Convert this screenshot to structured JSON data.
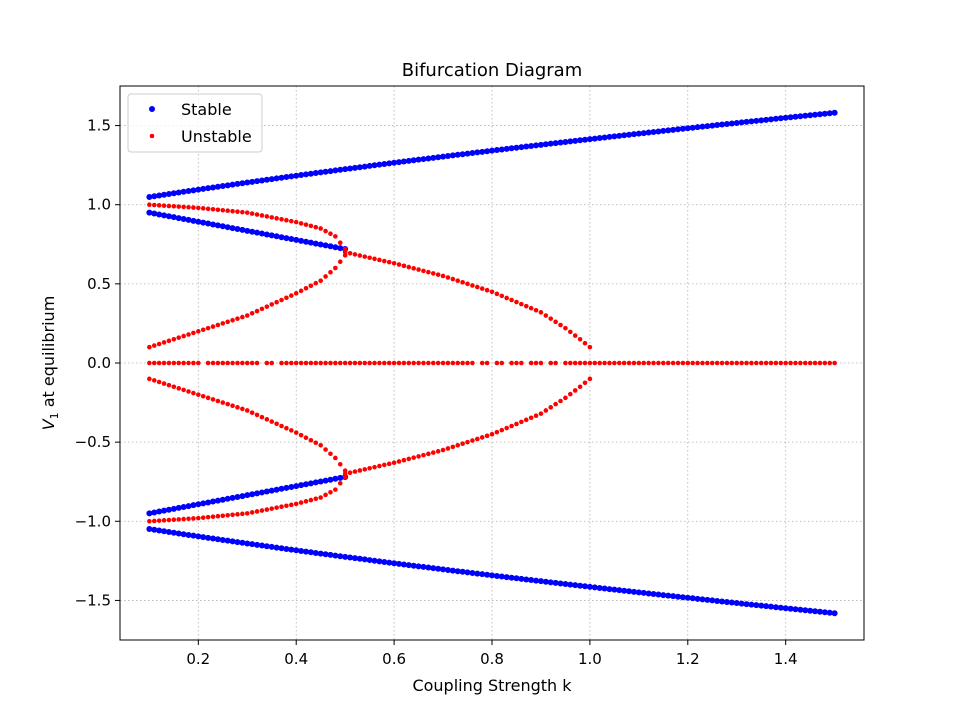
{
  "chart_data": {
    "type": "scatter",
    "title": "Bifurcation Diagram",
    "xlabel": "Coupling Strength k",
    "ylabel_main": "V",
    "ylabel_sub": "1",
    "ylabel_rest": " at equilibrium",
    "xlim": [
      0.04,
      1.56
    ],
    "ylim": [
      -1.75,
      1.75
    ],
    "xticks": [
      0.2,
      0.4,
      0.6,
      0.8,
      1.0,
      1.2,
      1.4
    ],
    "xtick_labels": [
      "0.2",
      "0.4",
      "0.6",
      "0.8",
      "1.0",
      "1.2",
      "1.4"
    ],
    "yticks": [
      -1.5,
      -1.0,
      -0.5,
      0.0,
      0.5,
      1.0,
      1.5
    ],
    "ytick_labels": [
      "−1.5",
      "−1.0",
      "−0.5",
      "0.0",
      "0.5",
      "1.0",
      "1.5"
    ],
    "grid": true,
    "legend": {
      "placement": "upper-left",
      "entries": [
        {
          "name": "Stable",
          "color": "#0000ff"
        },
        {
          "name": "Unstable",
          "color": "#ff0000"
        }
      ]
    },
    "k_min": 0.1,
    "k_max": 1.5,
    "k_step": 0.01,
    "series": [
      {
        "name": "Stable",
        "color": "#0000ff",
        "branches": [
          {
            "k_range": [
              0.1,
              1.5
            ],
            "formula": "sqrt(1+k)"
          },
          {
            "k_range": [
              0.1,
              1.5
            ],
            "formula": "-sqrt(1+k)"
          },
          {
            "k_range": [
              0.1,
              0.5
            ],
            "formula": "sqrt(1-k)"
          },
          {
            "k_range": [
              0.1,
              0.5
            ],
            "formula": "-sqrt(1-k)"
          }
        ]
      },
      {
        "name": "Unstable",
        "color": "#ff0000",
        "branches": [
          {
            "k_range": [
              0.1,
              0.5
            ],
            "formula": "sqrt((1-k)-k*k... approx)",
            "points": [
              [
                0.1,
                1.0
              ],
              [
                0.2,
                0.98
              ],
              [
                0.3,
                0.95
              ],
              [
                0.4,
                0.89
              ],
              [
                0.45,
                0.85
              ],
              [
                0.48,
                0.8
              ],
              [
                0.5,
                0.72
              ]
            ]
          },
          {
            "k_range": [
              0.1,
              0.5
            ],
            "points": [
              [
                0.1,
                0.1
              ],
              [
                0.2,
                0.2
              ],
              [
                0.3,
                0.3
              ],
              [
                0.4,
                0.44
              ],
              [
                0.45,
                0.52
              ],
              [
                0.48,
                0.6
              ],
              [
                0.5,
                0.68
              ]
            ]
          },
          {
            "k_range": [
              0.1,
              0.5
            ],
            "points": [
              [
                0.1,
                -1.0
              ],
              [
                0.2,
                -0.98
              ],
              [
                0.3,
                -0.95
              ],
              [
                0.4,
                -0.89
              ],
              [
                0.45,
                -0.85
              ],
              [
                0.48,
                -0.8
              ],
              [
                0.5,
                -0.72
              ]
            ]
          },
          {
            "k_range": [
              0.1,
              0.5
            ],
            "points": [
              [
                0.1,
                -0.1
              ],
              [
                0.2,
                -0.2
              ],
              [
                0.3,
                -0.3
              ],
              [
                0.4,
                -0.44
              ],
              [
                0.45,
                -0.52
              ],
              [
                0.48,
                -0.6
              ],
              [
                0.5,
                -0.68
              ]
            ]
          },
          {
            "k_range": [
              0.5,
              1.0
            ],
            "points": [
              [
                0.5,
                0.7
              ],
              [
                0.6,
                0.63
              ],
              [
                0.7,
                0.55
              ],
              [
                0.8,
                0.45
              ],
              [
                0.9,
                0.32
              ],
              [
                0.95,
                0.22
              ],
              [
                0.98,
                0.15
              ],
              [
                1.0,
                0.1
              ]
            ]
          },
          {
            "k_range": [
              0.5,
              1.0
            ],
            "points": [
              [
                0.5,
                -0.7
              ],
              [
                0.6,
                -0.63
              ],
              [
                0.7,
                -0.55
              ],
              [
                0.8,
                -0.45
              ],
              [
                0.9,
                -0.32
              ],
              [
                0.95,
                -0.22
              ],
              [
                0.98,
                -0.15
              ],
              [
                1.0,
                -0.1
              ]
            ]
          },
          {
            "k_range": [
              0.1,
              1.5
            ],
            "value": 0.0,
            "gaps": [
              0.21,
              0.33,
              0.36,
              0.77,
              0.8,
              0.83,
              0.87,
              0.91,
              0.94
            ]
          }
        ]
      }
    ]
  }
}
